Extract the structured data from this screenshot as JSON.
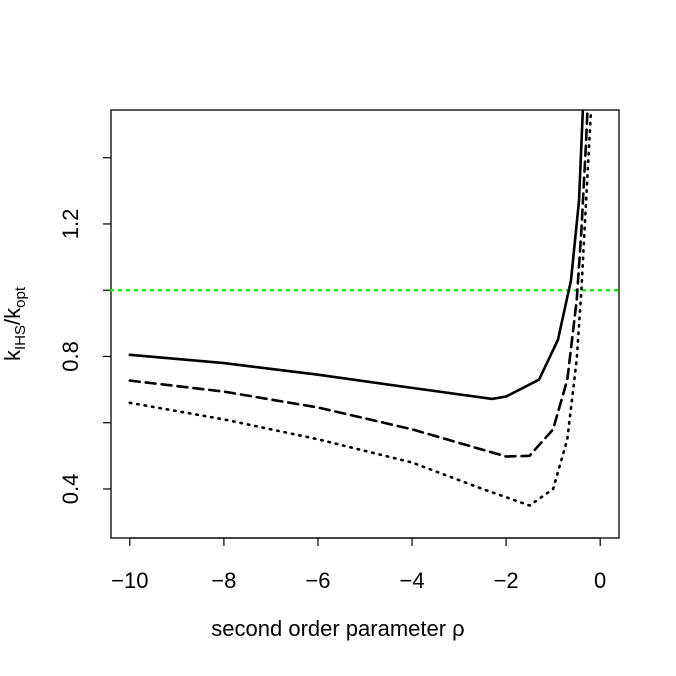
{
  "chart_data": {
    "type": "line",
    "xlabel": "second order parameter ρ",
    "ylabel": {
      "k1": "k",
      "sub1": "IHS",
      "k2": "/k",
      "sub2": "opt"
    },
    "xlim": [
      -10.4,
      0.4
    ],
    "ylim": [
      0.252,
      1.544
    ],
    "xticks": [
      {
        "value": -10,
        "label": "−10"
      },
      {
        "value": -8,
        "label": "−8"
      },
      {
        "value": -6,
        "label": "−6"
      },
      {
        "value": -4,
        "label": "−4"
      },
      {
        "value": -2,
        "label": "−2"
      },
      0
    ],
    "yticks": [
      0.4,
      0.8,
      1.2
    ],
    "minor_yticks": [
      0.6,
      1.0,
      1.4
    ],
    "hline": {
      "value": 1,
      "color": "#00ee00"
    },
    "series": [
      {
        "style": "solid",
        "color": "#000000",
        "x": [
          -10,
          -8,
          -6,
          -4,
          -2.3,
          -2,
          -1.3,
          -0.9,
          -0.62,
          -0.45,
          -0.37
        ],
        "values": [
          0.805,
          0.78,
          0.745,
          0.705,
          0.672,
          0.679,
          0.73,
          0.85,
          1.03,
          1.27,
          1.54
        ]
      },
      {
        "style": "dashed",
        "color": "#000000",
        "x": [
          -10,
          -8,
          -6,
          -4,
          -2,
          -1.5,
          -1,
          -0.7,
          -0.5,
          -0.4,
          -0.3,
          -0.27
        ],
        "values": [
          0.727,
          0.694,
          0.646,
          0.58,
          0.498,
          0.5,
          0.58,
          0.73,
          0.97,
          1.18,
          1.45,
          1.544
        ]
      },
      {
        "style": "dotted",
        "color": "#000000",
        "x": [
          -10,
          -8,
          -6,
          -4,
          -2.5,
          -1.5,
          -1,
          -0.7,
          -0.5,
          -0.4,
          -0.3,
          -0.2
        ],
        "values": [
          0.66,
          0.61,
          0.55,
          0.48,
          0.4,
          0.35,
          0.4,
          0.55,
          0.79,
          1.0,
          1.27,
          1.53
        ]
      }
    ]
  }
}
